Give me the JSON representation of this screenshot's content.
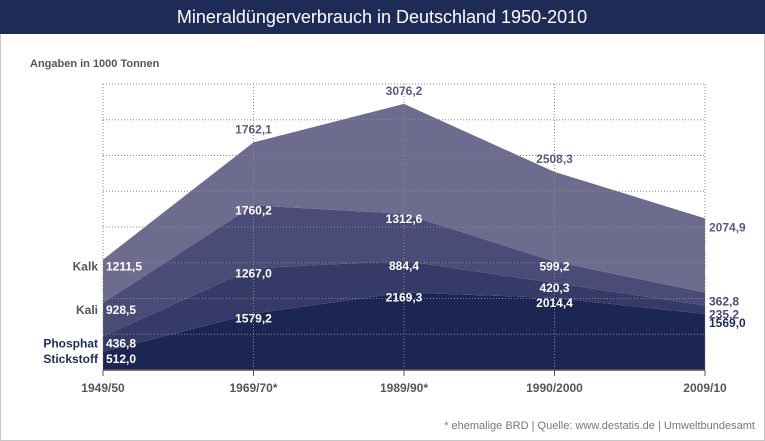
{
  "chart_data": {
    "type": "stacked-area",
    "title": "Mineraldüngerverbrauch in Deutschland 1950-2010",
    "subtitle": "Angaben in 1000 Tonnen",
    "footnote": "* ehemalige BRD | Quelle: www.destatis.de | Umweltbundesamt",
    "categories": [
      "1949/50",
      "1969/70*",
      "1989/90*",
      "1990/2000",
      "2009/10"
    ],
    "ylim": [
      0,
      8000
    ],
    "yticks": [
      0,
      1000,
      2000,
      3000,
      4000,
      5000,
      6000,
      7000,
      8000
    ],
    "grid": true,
    "series": [
      {
        "name": "Stickstoff",
        "color": "#1c2652",
        "values": [
          512.0,
          1579.2,
          2169.3,
          2014.4,
          1569.0
        ],
        "value_labels": [
          "512,0",
          "1579,2",
          "2169,3",
          "2014,4",
          "1569,0"
        ]
      },
      {
        "name": "Phosphat",
        "color": "#363a67",
        "values": [
          436.8,
          1267.0,
          884.4,
          420.3,
          235.2
        ],
        "value_labels": [
          "436,8",
          "1267,0",
          "884,4",
          "420,3",
          "235,2"
        ]
      },
      {
        "name": "Kali",
        "color": "#4b4b77",
        "values": [
          928.5,
          1760.2,
          1312.6,
          599.2,
          362.8
        ],
        "value_labels": [
          "928,5",
          "1760,2",
          "1312,6",
          "599,2",
          "362,8"
        ]
      },
      {
        "name": "Kalk",
        "color": "#6d6c8f",
        "values": [
          1211.5,
          1762.1,
          3076.2,
          2508.3,
          2074.9
        ],
        "value_labels": [
          "1211,5",
          "1762,1",
          "3076,2",
          "2508,3",
          "2074,9"
        ]
      }
    ]
  }
}
